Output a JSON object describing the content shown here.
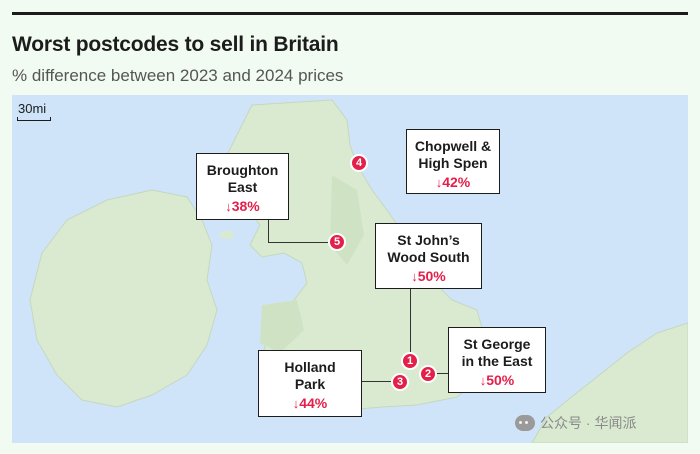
{
  "title": "Worst postcodes to sell in Britain",
  "subtitle": "% difference between 2023 and 2024 prices",
  "scale_label": "30mi",
  "colors": {
    "accent": "#e4204a",
    "sea": "#cfe4f8",
    "land": "#d9ead0"
  },
  "callouts": [
    {
      "name": "Broughton East",
      "line1": "Broughton",
      "line2": "East",
      "arrow": "↓",
      "pct": "38%"
    },
    {
      "name": "Chopwell & High Spen",
      "line1": "Chopwell &",
      "line2": "High Spen",
      "arrow": "↓",
      "pct": "42%"
    },
    {
      "name": "St John's Wood South",
      "line1": "St John’s",
      "line2": "Wood South",
      "arrow": "↓",
      "pct": "50%"
    },
    {
      "name": "St George in the East",
      "line1": "St George",
      "line2": "in the East",
      "arrow": "↓",
      "pct": "50%"
    },
    {
      "name": "Holland Park",
      "line1": "Holland",
      "line2": "Park",
      "arrow": "↓",
      "pct": "44%"
    }
  ],
  "pins": [
    "1",
    "2",
    "3",
    "4",
    "5"
  ],
  "watermark": "公众号 · 华闻派"
}
